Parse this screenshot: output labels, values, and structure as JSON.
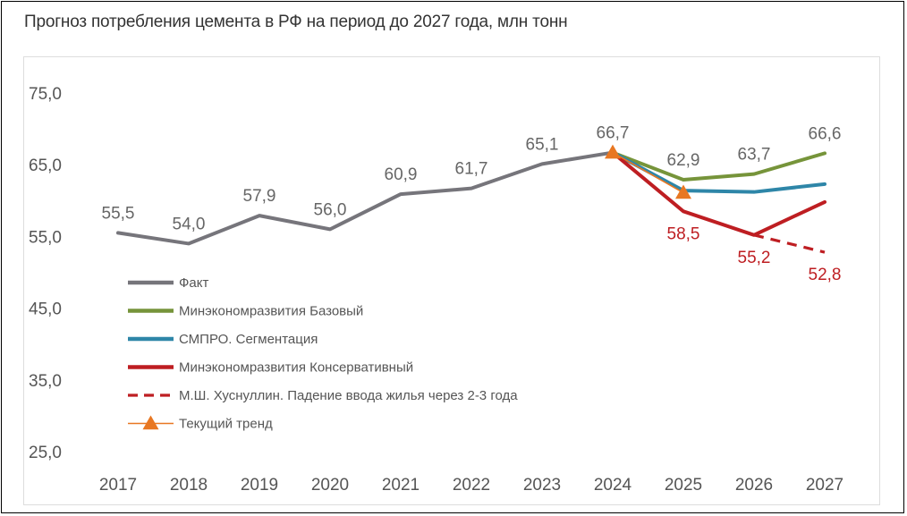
{
  "title": "Прогноз потребления цемента в РФ на период до 2027 года, млн тонн",
  "chart_data": {
    "type": "line",
    "x": [
      "2017",
      "2018",
      "2019",
      "2020",
      "2021",
      "2022",
      "2023",
      "2024",
      "2025",
      "2026",
      "2027"
    ],
    "ylim": [
      25,
      75
    ],
    "yticks": [
      "25,0",
      "35,0",
      "45,0",
      "55,0",
      "65,0",
      "75,0"
    ],
    "grid": false,
    "legend_position": "bottom-left",
    "series": [
      {
        "name": "Факт",
        "color": "#76757b",
        "style": "solid",
        "values": [
          55.5,
          54.0,
          57.9,
          56.0,
          60.9,
          61.7,
          65.1,
          66.7,
          null,
          null,
          null
        ],
        "labels": [
          "55,5",
          "54,0",
          "57,9",
          "56,0",
          "60,9",
          "61,7",
          "65,1",
          "66,7",
          "",
          "",
          ""
        ]
      },
      {
        "name": "Минэкономразвития Базовый",
        "color": "#76943a",
        "style": "solid",
        "values": [
          null,
          null,
          null,
          null,
          null,
          null,
          null,
          66.7,
          62.9,
          63.7,
          66.6
        ],
        "labels": [
          "",
          "",
          "",
          "",
          "",
          "",
          "",
          "",
          "62,9",
          "63,7",
          "66,6"
        ]
      },
      {
        "name": "СМПРО. Сегментация",
        "color": "#2e86a8",
        "style": "solid",
        "values": [
          null,
          null,
          null,
          null,
          null,
          null,
          null,
          66.7,
          61.4,
          61.2,
          62.3
        ],
        "labels": [
          "",
          "",
          "",
          "",
          "",
          "",
          "",
          "",
          "",
          "",
          ""
        ]
      },
      {
        "name": "Минэкономразвития Консервативный",
        "color": "#be1e22",
        "style": "solid",
        "values": [
          null,
          null,
          null,
          null,
          null,
          null,
          null,
          66.7,
          58.5,
          55.2,
          59.8
        ],
        "labels": [
          "",
          "",
          "",
          "",
          "",
          "",
          "",
          "",
          "58,5",
          "55,2",
          ""
        ]
      },
      {
        "name": "М.Ш. Хуснуллин. Падение ввода жилья через 2-3 года",
        "color": "#be1e22",
        "style": "dashed",
        "values": [
          null,
          null,
          null,
          null,
          null,
          null,
          null,
          null,
          null,
          55.2,
          52.8
        ],
        "labels": [
          "",
          "",
          "",
          "",
          "",
          "",
          "",
          "",
          "",
          "",
          "52,8"
        ]
      },
      {
        "name": "Текущий тренд",
        "color": "#e87722",
        "style": "marker-line",
        "values": [
          null,
          null,
          null,
          null,
          null,
          null,
          null,
          66.7,
          61.1,
          null,
          null
        ],
        "labels": [
          "",
          "",
          "",
          "",
          "",
          "",
          "",
          "",
          "",
          "",
          ""
        ]
      }
    ]
  }
}
